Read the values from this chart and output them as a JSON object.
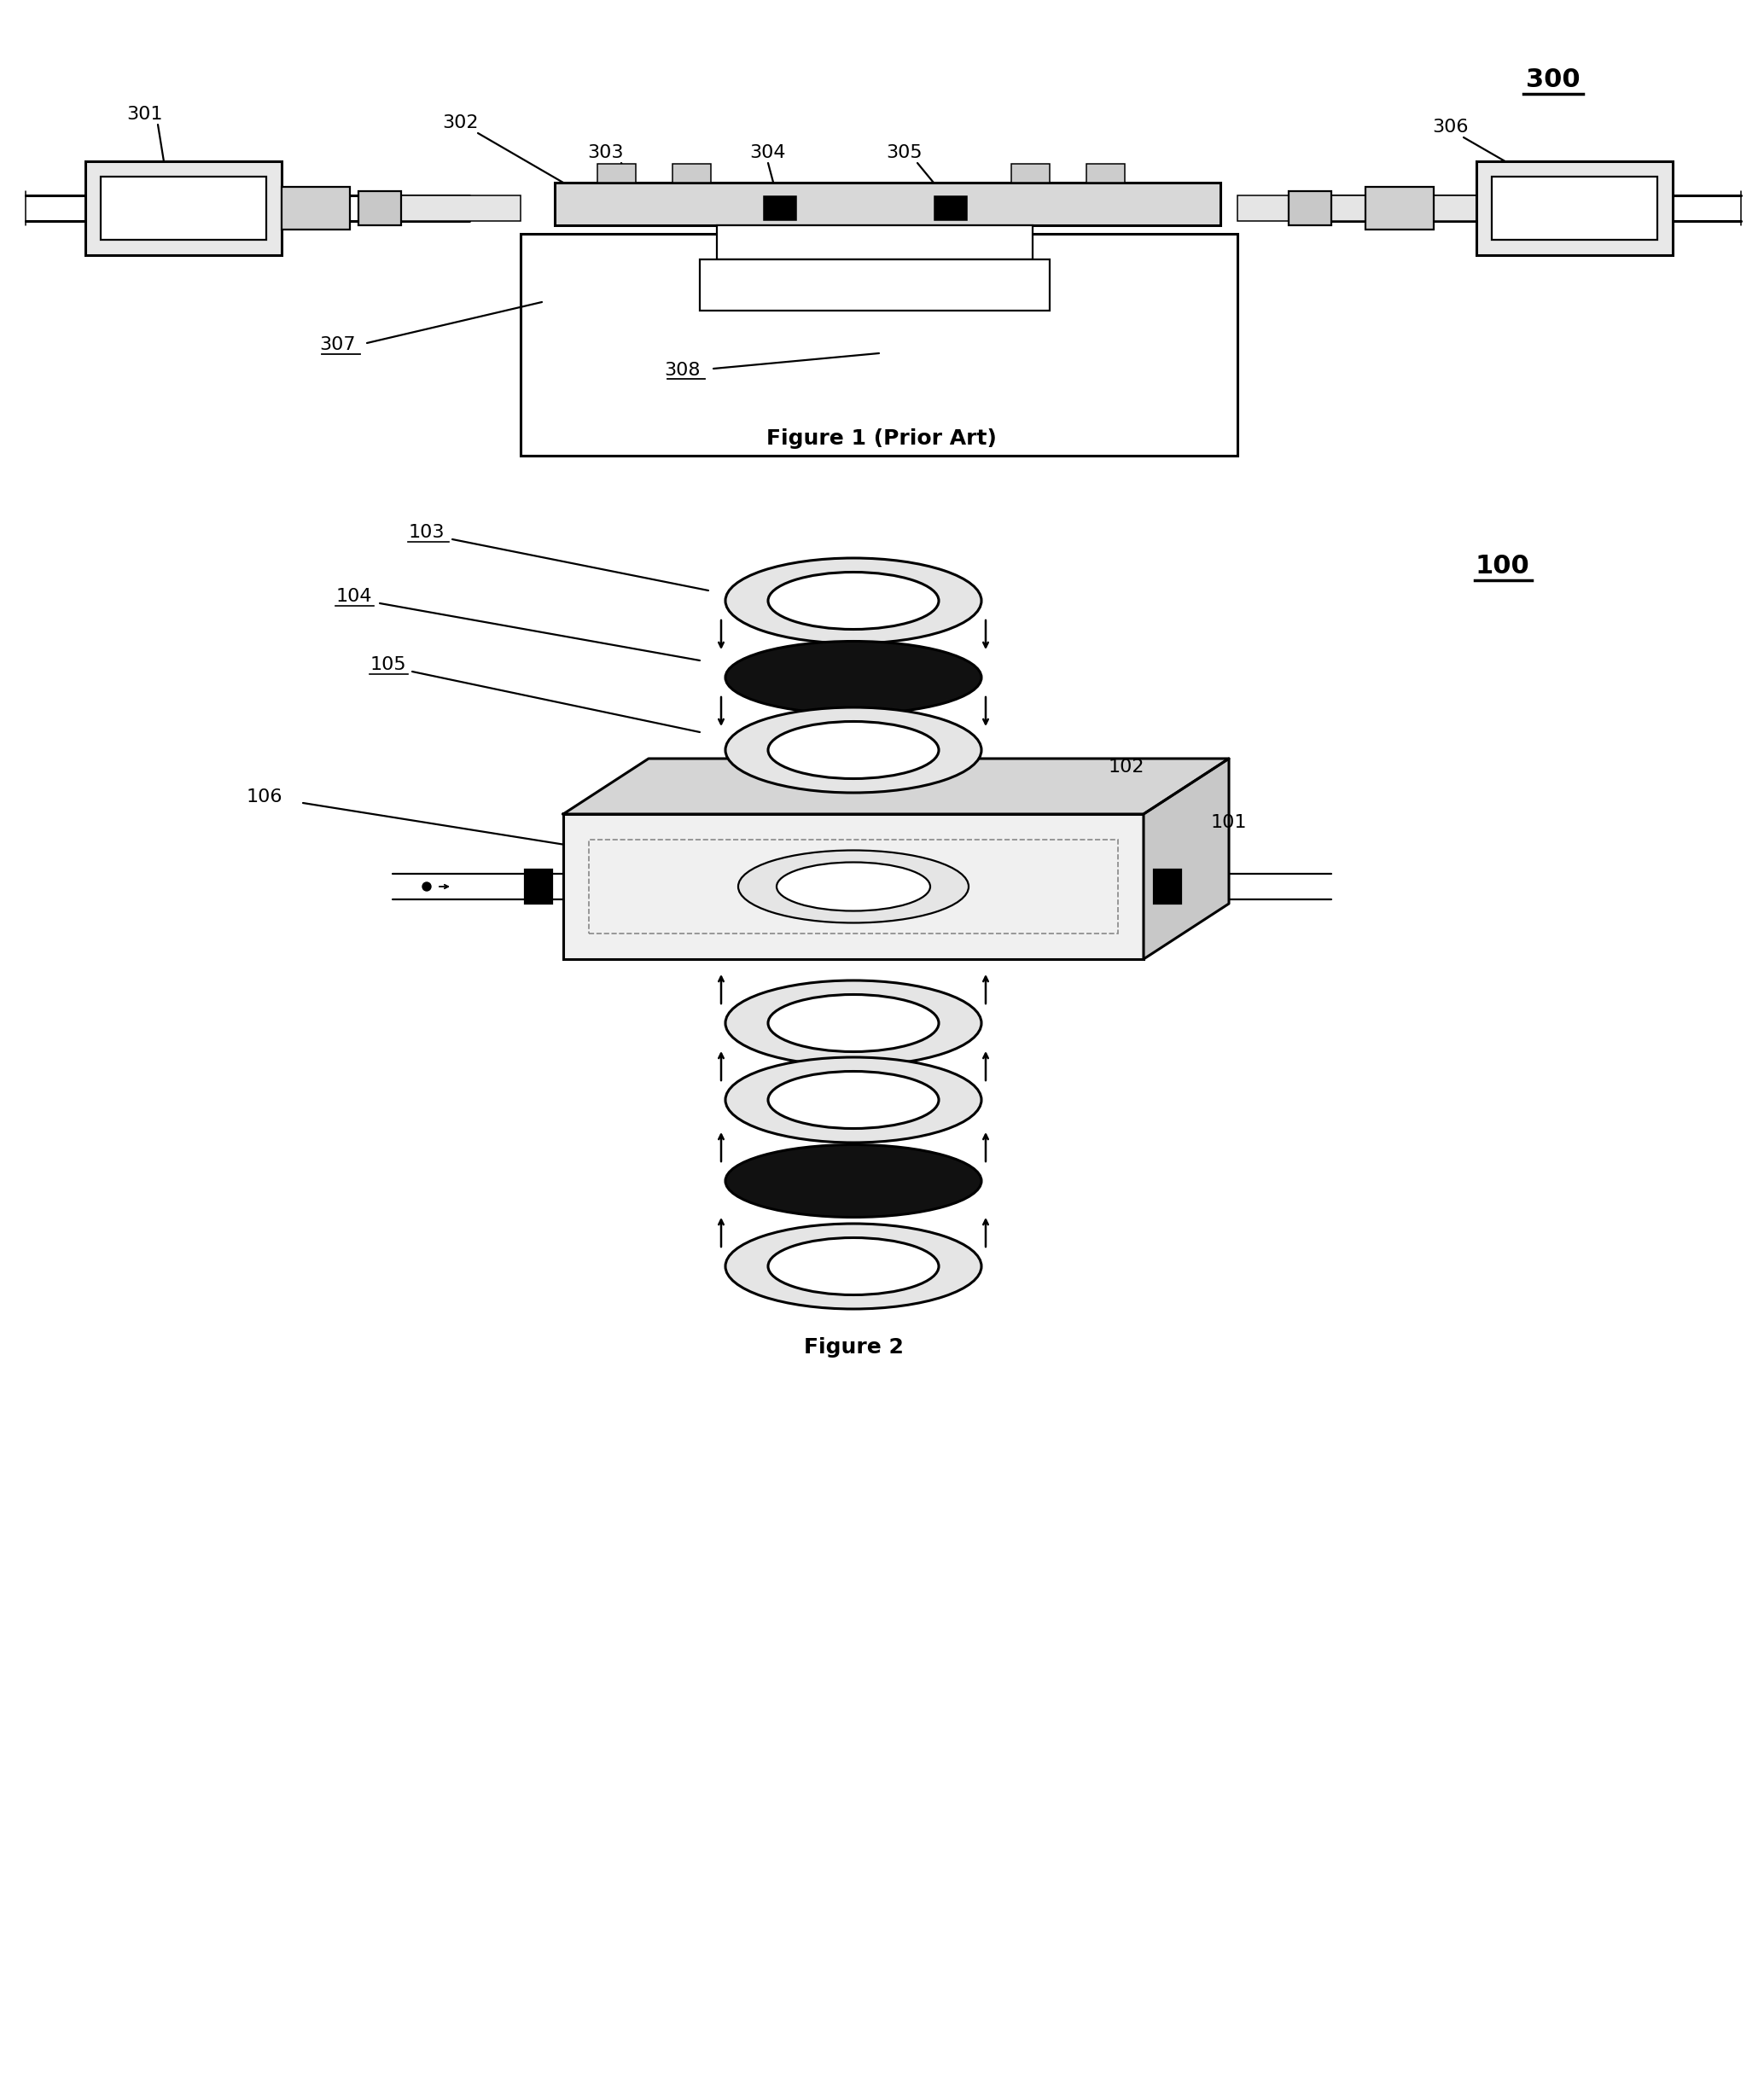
{
  "fig1_title": "Figure 1 (Prior Art)",
  "fig2_title": "Figure 2",
  "fig1_label": "300",
  "fig2_label": "100",
  "fig1_parts": [
    "301",
    "302",
    "303",
    "304",
    "305",
    "306",
    "307",
    "308"
  ],
  "fig2_parts": [
    "101",
    "102",
    "103",
    "104",
    "105",
    "106"
  ],
  "bg_color": "#ffffff",
  "line_color": "#000000",
  "title_fontsize": 18,
  "label_fontsize": 16
}
